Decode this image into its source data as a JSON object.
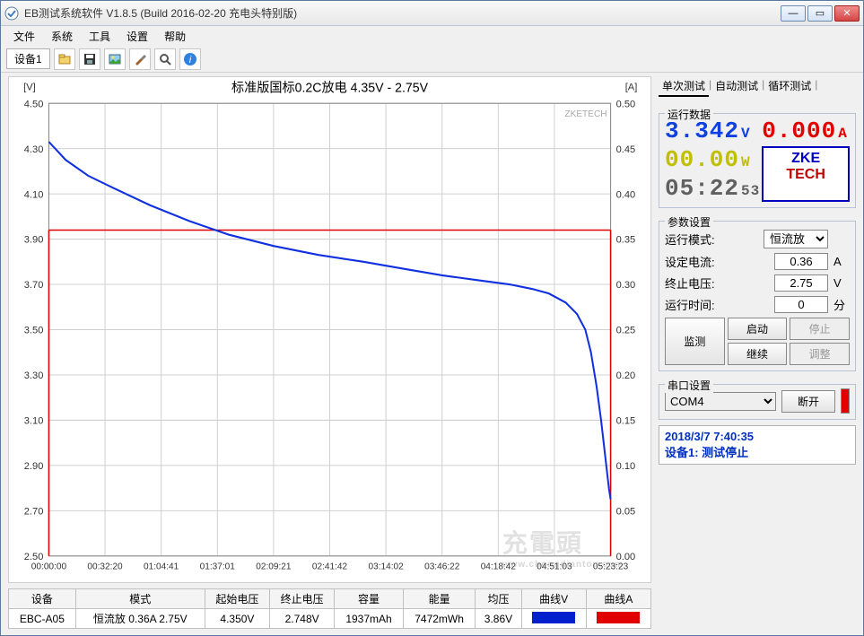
{
  "window": {
    "title": "EB测试系统软件 V1.8.5 (Build 2016-02-20 充电头特别版)"
  },
  "menu": {
    "items": [
      "文件",
      "系统",
      "工具",
      "设置",
      "帮助"
    ]
  },
  "toolbar": {
    "device_tab": "设备1",
    "icons": [
      "folder",
      "save",
      "image",
      "tools",
      "zoom",
      "info"
    ]
  },
  "chart": {
    "title": "标准版国标0.2C放电 4.35V - 2.75V",
    "watermark_brand": "ZKETECH",
    "y_left_label": "[V]",
    "y_right_label": "[A]",
    "y_left": {
      "min": 2.5,
      "max": 4.5,
      "step": 0.2
    },
    "y_right": {
      "min": 0.0,
      "max": 0.5,
      "step": 0.05
    },
    "x_ticks": [
      "00:00:00",
      "00:32:20",
      "01:04:41",
      "01:37:01",
      "02:09:21",
      "02:41:42",
      "03:14:02",
      "03:46:22",
      "04:18:42",
      "04:51:03",
      "05:23:23"
    ],
    "red_line_y": 3.94,
    "grid_color": "#d0d0d0",
    "major_grid_color": "#b0b0b0",
    "voltage_color": "#1030e0",
    "current_color": "#e00000",
    "background": "#ffffff",
    "voltage_curve": [
      [
        0,
        4.33
      ],
      [
        0.03,
        4.25
      ],
      [
        0.07,
        4.18
      ],
      [
        0.12,
        4.12
      ],
      [
        0.18,
        4.05
      ],
      [
        0.25,
        3.98
      ],
      [
        0.32,
        3.92
      ],
      [
        0.4,
        3.87
      ],
      [
        0.48,
        3.83
      ],
      [
        0.56,
        3.8
      ],
      [
        0.63,
        3.77
      ],
      [
        0.7,
        3.74
      ],
      [
        0.76,
        3.72
      ],
      [
        0.82,
        3.7
      ],
      [
        0.86,
        3.68
      ],
      [
        0.89,
        3.66
      ],
      [
        0.92,
        3.62
      ],
      [
        0.94,
        3.57
      ],
      [
        0.955,
        3.5
      ],
      [
        0.965,
        3.4
      ],
      [
        0.975,
        3.25
      ],
      [
        0.983,
        3.1
      ],
      [
        0.99,
        2.95
      ],
      [
        0.997,
        2.8
      ],
      [
        1.0,
        2.75
      ]
    ]
  },
  "results": {
    "headers": [
      "设备",
      "模式",
      "起始电压",
      "终止电压",
      "容量",
      "能量",
      "均压",
      "曲线V",
      "曲线A"
    ],
    "row": {
      "device": "EBC-A05",
      "mode": "恒流放  0.36A  2.75V",
      "vstart": "4.350V",
      "vend": "2.748V",
      "capacity": "1937mAh",
      "energy": "7472mWh",
      "vavg": "3.86V",
      "color_v": "#0020d0",
      "color_a": "#e00000"
    }
  },
  "right_tabs": {
    "items": [
      "单次测试",
      "自动测试",
      "循环测试"
    ],
    "active": 0
  },
  "readings": {
    "group_title": "运行数据",
    "voltage": {
      "value": "3.342",
      "unit": "V",
      "color": "#1040e0"
    },
    "current": {
      "value": "0.000",
      "unit": "A",
      "color": "#e00000"
    },
    "power": {
      "value": "00.00",
      "unit": "W",
      "color": "#c0c000"
    },
    "time": {
      "value": "05:22",
      "seconds": "53",
      "color": "#606060"
    },
    "logo": {
      "line1": "ZKE",
      "line2": "TECH"
    }
  },
  "params": {
    "group_title": "参数设置",
    "mode": {
      "label": "运行模式:",
      "value": "恒流放"
    },
    "set_current": {
      "label": "设定电流:",
      "value": "0.36",
      "unit": "A"
    },
    "cutoff_v": {
      "label": "终止电压:",
      "value": "2.75",
      "unit": "V"
    },
    "runtime": {
      "label": "运行时间:",
      "value": "0",
      "unit": "分"
    },
    "buttons": {
      "start": "启动",
      "stop": "停止",
      "continue": "继续",
      "adjust": "调整",
      "monitor": "监测"
    }
  },
  "serial": {
    "group_title": "串口设置",
    "port": "COM4",
    "disconnect": "断开"
  },
  "status": {
    "datetime": "2018/3/7 7:40:35",
    "message": "设备1: 测试停止"
  },
  "watermark": {
    "text": "充電頭",
    "url": "www.chongdiantou.com"
  }
}
